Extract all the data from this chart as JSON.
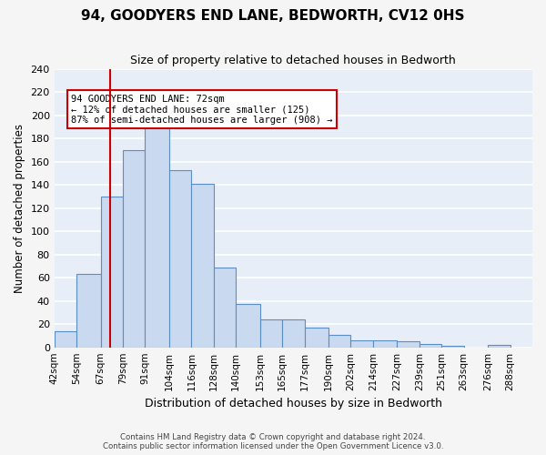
{
  "title": "94, GOODYERS END LANE, BEDWORTH, CV12 0HS",
  "subtitle": "Size of property relative to detached houses in Bedworth",
  "xlabel": "Distribution of detached houses by size in Bedworth",
  "ylabel": "Number of detached properties",
  "bin_labels": [
    "42sqm",
    "54sqm",
    "67sqm",
    "79sqm",
    "91sqm",
    "104sqm",
    "116sqm",
    "128sqm",
    "140sqm",
    "153sqm",
    "165sqm",
    "177sqm",
    "190sqm",
    "202sqm",
    "214sqm",
    "227sqm",
    "239sqm",
    "251sqm",
    "263sqm",
    "276sqm",
    "288sqm"
  ],
  "bin_edges": [
    42,
    54,
    67,
    79,
    91,
    104,
    116,
    128,
    140,
    153,
    165,
    177,
    190,
    202,
    214,
    227,
    239,
    251,
    263,
    276,
    288
  ],
  "bar_heights": [
    14,
    63,
    130,
    170,
    200,
    153,
    141,
    69,
    37,
    24,
    24,
    17,
    11,
    6,
    6,
    5,
    3,
    1,
    0,
    2
  ],
  "bar_color": "#c9d9f0",
  "bar_edge_color": "#5b8ec4",
  "property_size": 72,
  "vline_color": "#cc0000",
  "annotation_box_color": "#cc0000",
  "annotation_text": "94 GOODYERS END LANE: 72sqm\n← 12% of detached houses are smaller (125)\n87% of semi-detached houses are larger (908) →",
  "ylim": [
    0,
    240
  ],
  "yticks": [
    0,
    20,
    40,
    60,
    80,
    100,
    120,
    140,
    160,
    180,
    200,
    220,
    240
  ],
  "background_color": "#e8eef7",
  "grid_color": "#ffffff",
  "footer_line1": "Contains HM Land Registry data © Crown copyright and database right 2024.",
  "footer_line2": "Contains public sector information licensed under the Open Government Licence v3.0."
}
